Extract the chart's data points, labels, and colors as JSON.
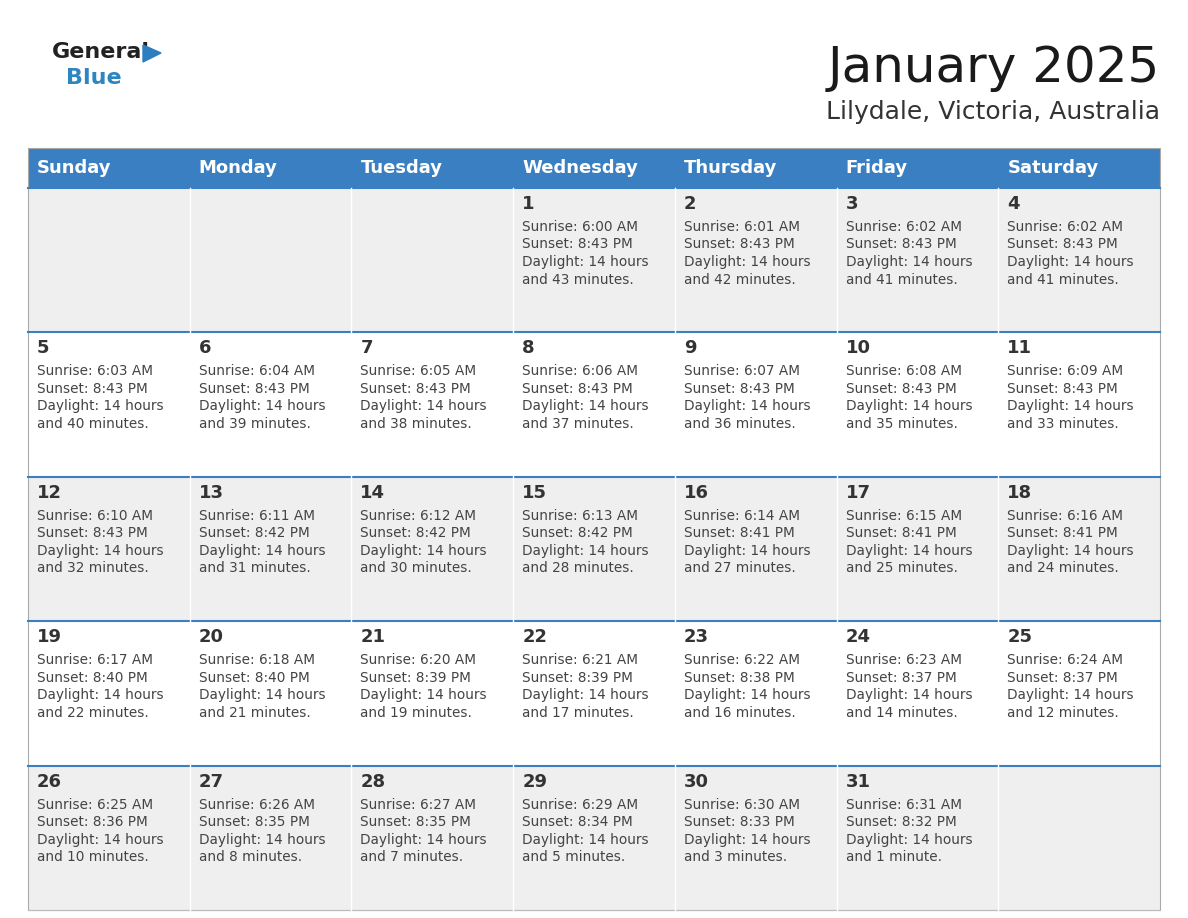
{
  "title": "January 2025",
  "subtitle": "Lilydale, Victoria, Australia",
  "header_bg": "#3a7fc1",
  "header_text_color": "#ffffff",
  "cell_bg_row0": "#efefef",
  "cell_bg_row1": "#ffffff",
  "cell_bg_row2": "#efefef",
  "cell_bg_row3": "#ffffff",
  "cell_bg_row4": "#efefef",
  "days_of_week": [
    "Sunday",
    "Monday",
    "Tuesday",
    "Wednesday",
    "Thursday",
    "Friday",
    "Saturday"
  ],
  "weeks": [
    [
      {
        "day": "",
        "info": ""
      },
      {
        "day": "",
        "info": ""
      },
      {
        "day": "",
        "info": ""
      },
      {
        "day": "1",
        "info": "Sunrise: 6:00 AM\nSunset: 8:43 PM\nDaylight: 14 hours\nand 43 minutes."
      },
      {
        "day": "2",
        "info": "Sunrise: 6:01 AM\nSunset: 8:43 PM\nDaylight: 14 hours\nand 42 minutes."
      },
      {
        "day": "3",
        "info": "Sunrise: 6:02 AM\nSunset: 8:43 PM\nDaylight: 14 hours\nand 41 minutes."
      },
      {
        "day": "4",
        "info": "Sunrise: 6:02 AM\nSunset: 8:43 PM\nDaylight: 14 hours\nand 41 minutes."
      }
    ],
    [
      {
        "day": "5",
        "info": "Sunrise: 6:03 AM\nSunset: 8:43 PM\nDaylight: 14 hours\nand 40 minutes."
      },
      {
        "day": "6",
        "info": "Sunrise: 6:04 AM\nSunset: 8:43 PM\nDaylight: 14 hours\nand 39 minutes."
      },
      {
        "day": "7",
        "info": "Sunrise: 6:05 AM\nSunset: 8:43 PM\nDaylight: 14 hours\nand 38 minutes."
      },
      {
        "day": "8",
        "info": "Sunrise: 6:06 AM\nSunset: 8:43 PM\nDaylight: 14 hours\nand 37 minutes."
      },
      {
        "day": "9",
        "info": "Sunrise: 6:07 AM\nSunset: 8:43 PM\nDaylight: 14 hours\nand 36 minutes."
      },
      {
        "day": "10",
        "info": "Sunrise: 6:08 AM\nSunset: 8:43 PM\nDaylight: 14 hours\nand 35 minutes."
      },
      {
        "day": "11",
        "info": "Sunrise: 6:09 AM\nSunset: 8:43 PM\nDaylight: 14 hours\nand 33 minutes."
      }
    ],
    [
      {
        "day": "12",
        "info": "Sunrise: 6:10 AM\nSunset: 8:43 PM\nDaylight: 14 hours\nand 32 minutes."
      },
      {
        "day": "13",
        "info": "Sunrise: 6:11 AM\nSunset: 8:42 PM\nDaylight: 14 hours\nand 31 minutes."
      },
      {
        "day": "14",
        "info": "Sunrise: 6:12 AM\nSunset: 8:42 PM\nDaylight: 14 hours\nand 30 minutes."
      },
      {
        "day": "15",
        "info": "Sunrise: 6:13 AM\nSunset: 8:42 PM\nDaylight: 14 hours\nand 28 minutes."
      },
      {
        "day": "16",
        "info": "Sunrise: 6:14 AM\nSunset: 8:41 PM\nDaylight: 14 hours\nand 27 minutes."
      },
      {
        "day": "17",
        "info": "Sunrise: 6:15 AM\nSunset: 8:41 PM\nDaylight: 14 hours\nand 25 minutes."
      },
      {
        "day": "18",
        "info": "Sunrise: 6:16 AM\nSunset: 8:41 PM\nDaylight: 14 hours\nand 24 minutes."
      }
    ],
    [
      {
        "day": "19",
        "info": "Sunrise: 6:17 AM\nSunset: 8:40 PM\nDaylight: 14 hours\nand 22 minutes."
      },
      {
        "day": "20",
        "info": "Sunrise: 6:18 AM\nSunset: 8:40 PM\nDaylight: 14 hours\nand 21 minutes."
      },
      {
        "day": "21",
        "info": "Sunrise: 6:20 AM\nSunset: 8:39 PM\nDaylight: 14 hours\nand 19 minutes."
      },
      {
        "day": "22",
        "info": "Sunrise: 6:21 AM\nSunset: 8:39 PM\nDaylight: 14 hours\nand 17 minutes."
      },
      {
        "day": "23",
        "info": "Sunrise: 6:22 AM\nSunset: 8:38 PM\nDaylight: 14 hours\nand 16 minutes."
      },
      {
        "day": "24",
        "info": "Sunrise: 6:23 AM\nSunset: 8:37 PM\nDaylight: 14 hours\nand 14 minutes."
      },
      {
        "day": "25",
        "info": "Sunrise: 6:24 AM\nSunset: 8:37 PM\nDaylight: 14 hours\nand 12 minutes."
      }
    ],
    [
      {
        "day": "26",
        "info": "Sunrise: 6:25 AM\nSunset: 8:36 PM\nDaylight: 14 hours\nand 10 minutes."
      },
      {
        "day": "27",
        "info": "Sunrise: 6:26 AM\nSunset: 8:35 PM\nDaylight: 14 hours\nand 8 minutes."
      },
      {
        "day": "28",
        "info": "Sunrise: 6:27 AM\nSunset: 8:35 PM\nDaylight: 14 hours\nand 7 minutes."
      },
      {
        "day": "29",
        "info": "Sunrise: 6:29 AM\nSunset: 8:34 PM\nDaylight: 14 hours\nand 5 minutes."
      },
      {
        "day": "30",
        "info": "Sunrise: 6:30 AM\nSunset: 8:33 PM\nDaylight: 14 hours\nand 3 minutes."
      },
      {
        "day": "31",
        "info": "Sunrise: 6:31 AM\nSunset: 8:32 PM\nDaylight: 14 hours\nand 1 minute."
      },
      {
        "day": "",
        "info": ""
      }
    ]
  ],
  "logo_general_color": "#222222",
  "logo_blue_color": "#2e86c1",
  "logo_triangle_color": "#2e7dbf",
  "divider_color": "#3a7fc1",
  "cell_text_color": "#444444",
  "day_number_color": "#333333",
  "title_fontsize": 36,
  "subtitle_fontsize": 18,
  "header_fontsize": 13,
  "day_num_fontsize": 13,
  "info_fontsize": 9.8
}
